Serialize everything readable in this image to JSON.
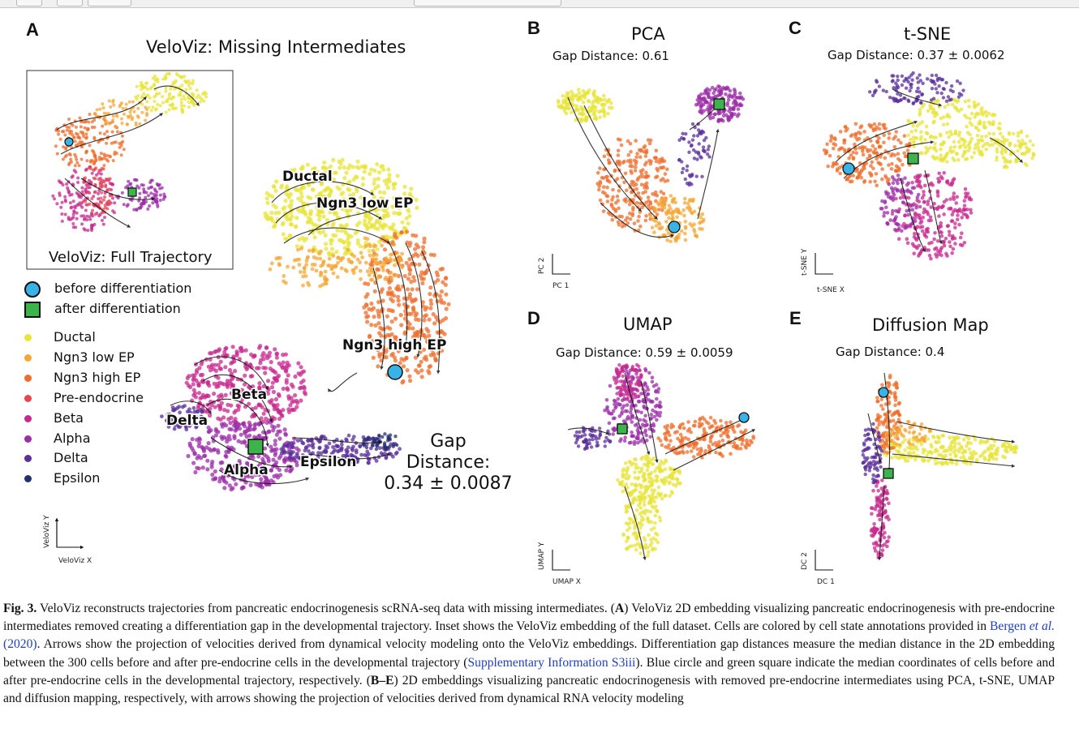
{
  "panels": {
    "A": {
      "label": "A",
      "title": "VeloViz: Missing Intermediates",
      "inset_title": "VeloViz: Full Trajectory",
      "gap_lines": [
        "Gap",
        "Distance:",
        "0.34 ± 0.0087"
      ],
      "xaxis": "VeloViz X",
      "yaxis": "VeloViz Y"
    },
    "B": {
      "label": "B",
      "title": "PCA",
      "gap": "Gap Distance: 0.61",
      "xaxis": "PC 1",
      "yaxis": "PC 2"
    },
    "C": {
      "label": "C",
      "title": "t-SNE",
      "gap": "Gap Distance: 0.37 ± 0.0062",
      "xaxis": "t-SNE X",
      "yaxis": "t-SNE Y"
    },
    "D": {
      "label": "D",
      "title": "UMAP",
      "gap": "Gap Distance: 0.59 ± 0.0059",
      "xaxis": "UMAP X",
      "yaxis": "UMAP Y"
    },
    "E": {
      "label": "E",
      "title": "Diffusion Map",
      "gap": "Gap Distance: 0.4",
      "xaxis": "DC 1",
      "yaxis": "DC 2"
    }
  },
  "cluster_labels": [
    "Ductal",
    "Ngn3 low EP",
    "Ngn3 high EP",
    "Beta",
    "Delta",
    "Alpha",
    "Epsilon"
  ],
  "legend": {
    "markers": [
      {
        "label": "before differentiation",
        "color": "#39b3e6",
        "shape": "circle"
      },
      {
        "label": "after differentiation",
        "color": "#3cb44b",
        "shape": "square"
      }
    ],
    "cell_types": [
      {
        "label": "Ductal",
        "color": "#e7e43a"
      },
      {
        "label": "Ngn3 low EP",
        "color": "#f4a736"
      },
      {
        "label": "Ngn3 high EP",
        "color": "#ee6d2c"
      },
      {
        "label": "Pre-endocrine",
        "color": "#e8454f"
      },
      {
        "label": "Beta",
        "color": "#c72a8e"
      },
      {
        "label": "Alpha",
        "color": "#9b2ea8"
      },
      {
        "label": "Delta",
        "color": "#5a2f9a"
      },
      {
        "label": "Epsilon",
        "color": "#23306e"
      }
    ]
  },
  "caption": {
    "fig": "Fig. 3.",
    "p1": " VeloViz reconstructs trajectories from pancreatic endocrinogenesis scRNA-seq data with missing intermediates. (",
    "A": "A",
    "p2": ") VeloViz 2D embedding visualizing pancreatic endocrinogenesis with pre-endocrine intermediates removed creating a differentiation gap in the developmental trajectory. Inset shows the VeloViz embedding of the full dataset. Cells are colored by cell state annotations provided in ",
    "ref1": "Bergen ",
    "ref1_etal": "et al.",
    "ref1_year": " (2020)",
    "p3": ". Arrows show the projection of velocities derived from dynamical velocity modeling onto the VeloViz embeddings. Differentiation gap distances measure the median distance in the 2D embedding between the 300 cells before and after pre-endocrine cells in the developmental trajectory (",
    "ref2": "Supplementary Information S3iii",
    "p4": "). Blue circle and green square indicate the median coordinates of cells before and after pre-endocrine cells in the developmental trajectory, respectively. (",
    "BE": "B–E",
    "p5": ") 2D embeddings visualizing pancreatic endocrinogenesis with removed pre-endocrine intermediates using PCA, t-SNE, UMAP and diffusion mapping, respectively, with arrows showing the projection of velocities derived from dynamical RNA velocity modeling"
  }
}
